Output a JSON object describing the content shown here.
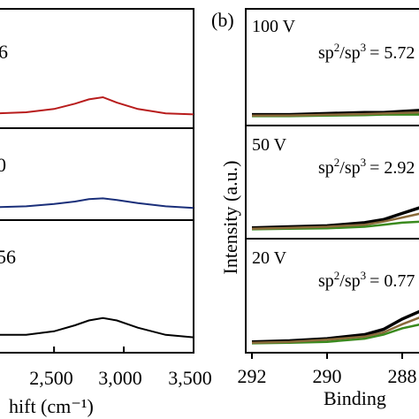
{
  "chart_data": [
    {
      "panel": "a",
      "type": "line",
      "xlabel": "hift (cm⁻¹)",
      "xlim": [
        2100,
        3500
      ],
      "x_ticks": [
        "2,500",
        "3,000",
        "3,500"
      ],
      "x_tick_values": [
        2500,
        3000,
        3500
      ],
      "subpanels": [
        {
          "label": "6",
          "color": "#b81c1c",
          "ylim": [
            0,
            10
          ],
          "x": [
            2100,
            2300,
            2500,
            2650,
            2750,
            2850,
            2950,
            3100,
            3300,
            3500
          ],
          "y": [
            0.4,
            0.5,
            0.8,
            1.3,
            1.7,
            1.9,
            1.4,
            0.8,
            0.4,
            0.3
          ]
        },
        {
          "label": "0",
          "color": "#1a2f7a",
          "ylim": [
            0,
            10
          ],
          "x": [
            2100,
            2300,
            2500,
            2650,
            2750,
            2850,
            2950,
            3100,
            3300,
            3500
          ],
          "y": [
            0.3,
            0.4,
            0.7,
            1.0,
            1.3,
            1.4,
            1.2,
            0.8,
            0.4,
            0.2
          ]
        },
        {
          "label": "56",
          "color": "#000000",
          "ylim": [
            0,
            10
          ],
          "x": [
            2100,
            2300,
            2500,
            2650,
            2750,
            2850,
            2950,
            3100,
            3300,
            3500
          ],
          "y": [
            0.6,
            0.6,
            0.9,
            1.4,
            1.8,
            2.0,
            1.8,
            1.2,
            0.6,
            0.4
          ]
        }
      ]
    },
    {
      "panel": "b",
      "panel_label": "(b)",
      "type": "line",
      "xlabel": "Binding",
      "ylabel": "Intensity (a.u.)",
      "xlim": [
        292,
        287.5
      ],
      "x_ticks": [
        "292",
        "290",
        "288"
      ],
      "x_tick_values": [
        292,
        290,
        288
      ],
      "subpanels": [
        {
          "label": "100 V",
          "ratio_text": "= 5.72",
          "ylim": [
            0,
            10
          ],
          "series": [
            {
              "color": "#000000",
              "x": [
                292,
                291,
                290,
                289,
                288.5,
                288,
                287.5
              ],
              "y": [
                0.2,
                0.2,
                0.3,
                0.4,
                0.4,
                0.5,
                0.6
              ]
            },
            {
              "color": "#3a8a1e",
              "x": [
                292,
                291,
                290,
                289,
                288.5,
                288,
                287.5
              ],
              "y": [
                0.05,
                0.05,
                0.1,
                0.15,
                0.2,
                0.2,
                0.2
              ]
            },
            {
              "color": "#8a6a3a",
              "x": [
                292,
                291,
                290,
                289,
                288.5,
                288,
                287.5
              ],
              "y": [
                0.1,
                0.12,
                0.18,
                0.25,
                0.3,
                0.35,
                0.4
              ]
            }
          ]
        },
        {
          "label": "50 V",
          "ratio_text": "= 2.92",
          "ylim": [
            0,
            10
          ],
          "series": [
            {
              "color": "#000000",
              "x": [
                292,
                291,
                290,
                289,
                288.5,
                288,
                287.5
              ],
              "y": [
                0.2,
                0.3,
                0.4,
                0.7,
                1.0,
                1.6,
                2.2
              ]
            },
            {
              "color": "#3a8a1e",
              "x": [
                292,
                291,
                290,
                289,
                288.5,
                288,
                287.5
              ],
              "y": [
                0.05,
                0.1,
                0.15,
                0.3,
                0.5,
                0.7,
                0.8
              ]
            },
            {
              "color": "#8a6a3a",
              "x": [
                292,
                291,
                290,
                289,
                288.5,
                288,
                287.5
              ],
              "y": [
                0.1,
                0.2,
                0.3,
                0.5,
                0.8,
                1.2,
                1.6
              ]
            }
          ]
        },
        {
          "label": "20 V",
          "ratio_text": "= 0.77",
          "ylim": [
            0,
            10
          ],
          "series": [
            {
              "color": "#000000",
              "x": [
                292,
                291,
                290,
                289,
                288.5,
                288,
                287.5
              ],
              "y": [
                0.2,
                0.3,
                0.5,
                0.9,
                1.4,
                2.4,
                3.2
              ]
            },
            {
              "color": "#3a8a1e",
              "x": [
                292,
                291,
                290,
                289,
                288.5,
                288,
                287.5
              ],
              "y": [
                0.05,
                0.1,
                0.2,
                0.5,
                0.9,
                1.5,
                1.9
              ]
            },
            {
              "color": "#8a6a3a",
              "x": [
                292,
                291,
                290,
                289,
                288.5,
                288,
                287.5
              ],
              "y": [
                0.1,
                0.2,
                0.4,
                0.7,
                1.1,
                1.9,
                2.6
              ]
            }
          ]
        }
      ]
    }
  ]
}
